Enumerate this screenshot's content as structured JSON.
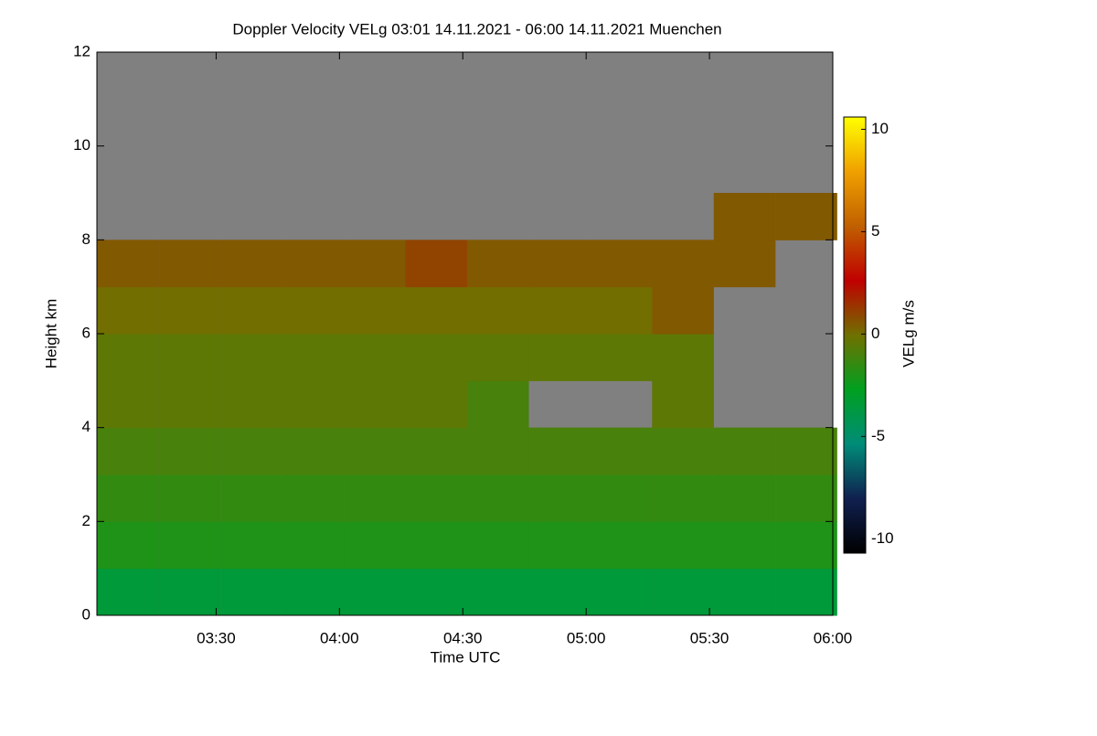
{
  "chart_data": {
    "type": "heatmap",
    "title": "Doppler Velocity VELg   03:01 14.11.2021 - 06:00 14.11.2021 Muenchen",
    "xlabel": "Time UTC",
    "ylabel": "Height km",
    "colorbar_label": "VELg m/s",
    "x": [
      188.5,
      203.5,
      218.5,
      233.5,
      248.5,
      263.5,
      278.5,
      293.5,
      308.5,
      323.5,
      338.5,
      353.5
    ],
    "y": [
      0.5,
      1.5,
      2.5,
      3.5,
      4.5,
      5.5,
      6.5,
      7.5,
      8.5,
      9.5,
      10.5,
      11.5
    ],
    "values": [
      [
        -3.5,
        -3.5,
        -3.5,
        -3.5,
        -3.5,
        -3.5,
        -3.5,
        -3.5,
        -3.5,
        -3.5,
        -3.5,
        -3.5
      ],
      [
        -2,
        -2,
        -2,
        -2,
        -2,
        -2,
        -2,
        -2,
        -2,
        -2,
        -2,
        -2
      ],
      [
        -1.5,
        -1.5,
        -1.5,
        -1.5,
        -1.5,
        -1.5,
        -1.5,
        -1.5,
        -1.5,
        -1.5,
        -1.5,
        -1.5
      ],
      [
        -1,
        -1,
        -1,
        -1,
        -1,
        -1,
        -1,
        -1,
        -1,
        -1,
        -1,
        -1
      ],
      [
        -0.5,
        -0.5,
        -0.5,
        -0.5,
        -0.5,
        -0.5,
        -1,
        null,
        null,
        -0.5,
        null,
        null
      ],
      [
        -0.5,
        -0.5,
        -0.5,
        -0.5,
        -0.5,
        -0.5,
        -0.5,
        -0.5,
        -0.5,
        -0.5,
        null,
        null
      ],
      [
        0,
        0,
        0,
        0,
        0,
        0,
        0,
        0,
        0,
        0.5,
        null,
        null
      ],
      [
        0.5,
        0.5,
        0.5,
        0.5,
        0.5,
        1,
        0.5,
        0.5,
        0.5,
        0.5,
        0.5,
        null
      ],
      [
        null,
        null,
        null,
        null,
        null,
        null,
        null,
        null,
        null,
        null,
        0.5,
        0.5
      ],
      [
        null,
        null,
        null,
        null,
        null,
        null,
        null,
        null,
        null,
        null,
        null,
        null
      ],
      [
        null,
        null,
        null,
        null,
        null,
        null,
        null,
        null,
        null,
        null,
        null,
        null
      ],
      [
        null,
        null,
        null,
        null,
        null,
        null,
        null,
        null,
        null,
        null,
        null,
        null
      ]
    ],
    "xlim": [
      181,
      360
    ],
    "xticks": [
      {
        "value": 210,
        "label": "03:30"
      },
      {
        "value": 240,
        "label": "04:00"
      },
      {
        "value": 270,
        "label": "04:30"
      },
      {
        "value": 300,
        "label": "05:00"
      },
      {
        "value": 330,
        "label": "05:30"
      },
      {
        "value": 360,
        "label": "06:00"
      }
    ],
    "ylim": [
      0,
      12
    ],
    "yticks": [
      0,
      2,
      4,
      6,
      8,
      10,
      12
    ],
    "zlim": [
      -10.7,
      10.6
    ],
    "zticks": [
      -10,
      -5,
      0,
      5,
      10
    ],
    "missing_color": "#808080",
    "colorscale": [
      "#000000",
      "#102050",
      "#008c78",
      "#00a020",
      "#707000",
      "#c00000",
      "#c06000",
      "#f0a000",
      "#ffff00"
    ]
  }
}
